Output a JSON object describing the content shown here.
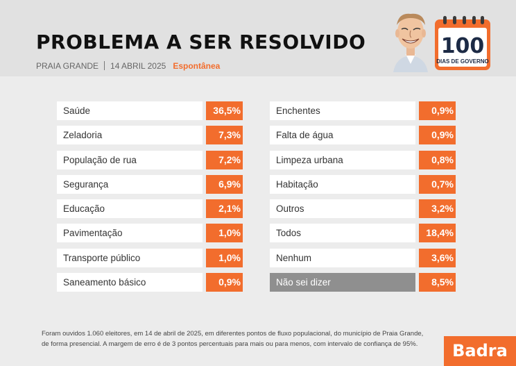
{
  "header": {
    "title": "PROBLEMA A SER RESOLVIDO",
    "city": "PRAIA GRANDE",
    "date": "14 ABRIL 2025",
    "type": "Espontânea"
  },
  "badge": {
    "number": "100",
    "caption": "DIAS DE GOVERNO"
  },
  "chart_data": {
    "type": "table",
    "title": "PROBLEMA A SER RESOLVIDO",
    "unit": "%",
    "left": [
      {
        "label": "Saúde",
        "value": 36.5,
        "text": "36,5%"
      },
      {
        "label": "Zeladoria",
        "value": 7.3,
        "text": "7,3%"
      },
      {
        "label": "População de rua",
        "value": 7.2,
        "text": "7,2%"
      },
      {
        "label": "Segurança",
        "value": 6.9,
        "text": "6,9%"
      },
      {
        "label": "Educação",
        "value": 2.1,
        "text": "2,1%"
      },
      {
        "label": "Pavimentação",
        "value": 1.0,
        "text": "1,0%"
      },
      {
        "label": "Transporte público",
        "value": 1.0,
        "text": "1,0%"
      },
      {
        "label": "Saneamento básico",
        "value": 0.9,
        "text": "0,9%"
      }
    ],
    "right": [
      {
        "label": "Enchentes",
        "value": 0.9,
        "text": "0,9%"
      },
      {
        "label": "Falta de água",
        "value": 0.9,
        "text": "0,9%"
      },
      {
        "label": "Limpeza urbana",
        "value": 0.8,
        "text": "0,8%"
      },
      {
        "label": "Habitação",
        "value": 0.7,
        "text": "0,7%"
      },
      {
        "label": "Outros",
        "value": 3.2,
        "text": "3,2%"
      },
      {
        "label": "Todos",
        "value": 18.4,
        "text": "18,4%"
      },
      {
        "label": "Nenhum",
        "value": 3.6,
        "text": "3,6%"
      },
      {
        "label": "Não sei dizer",
        "value": 8.5,
        "text": "8,5%"
      }
    ]
  },
  "colors": {
    "accent": "#f26d2d",
    "row_bg": "#ffffff",
    "highlight_row_bg": "#8f8f8f"
  },
  "footnote": {
    "line1": "Foram ouvidos 1.060 eleitores, em 14 de abril de 2025, em diferentes pontos de fluxo populacional, do município de Praia Grande,",
    "line2": "de forma presencial. A margem de erro é de 3 pontos percentuais para mais ou para menos, com intervalo de confiança de 95%."
  },
  "brand": "Badra"
}
